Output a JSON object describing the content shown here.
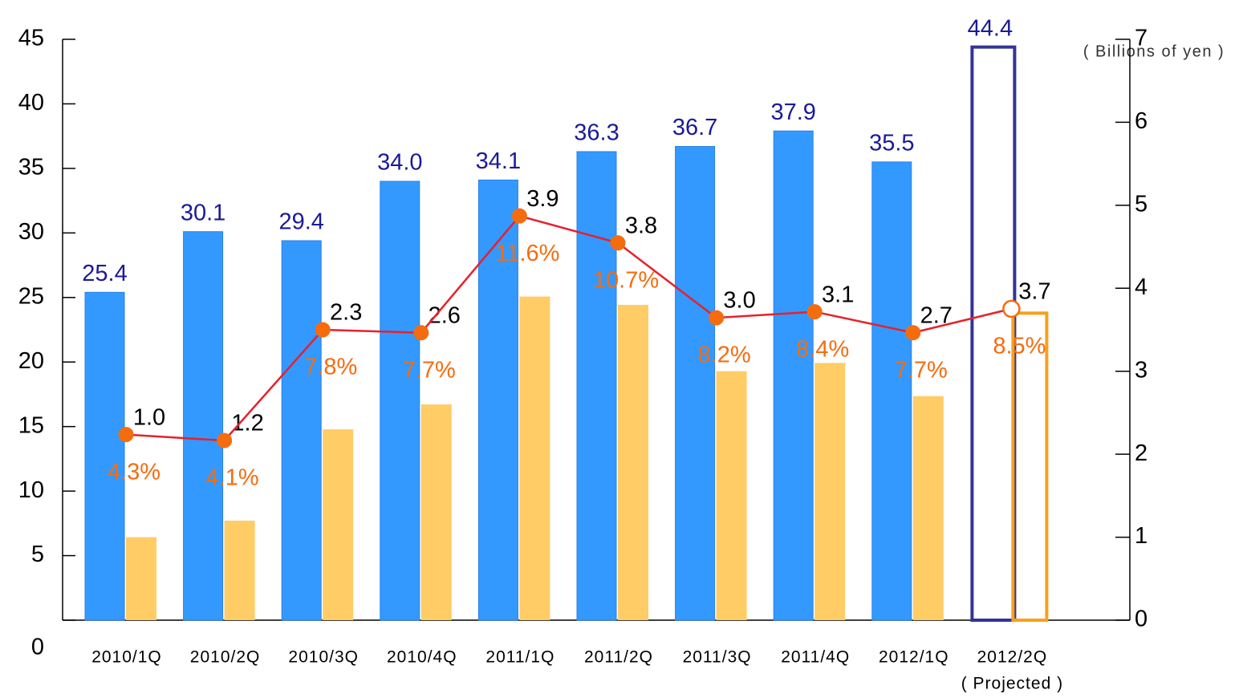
{
  "chart_data": {
    "type": "bar",
    "units_label": "( Billions of yen )",
    "projected_label": "( Projected )",
    "categories": [
      "2010/1Q",
      "2010/2Q",
      "2010/3Q",
      "2010/4Q",
      "2011/1Q",
      "2011/2Q",
      "2011/3Q",
      "2011/4Q",
      "2012/1Q",
      "2012/2Q"
    ],
    "projected_index": 9,
    "series": [
      {
        "type": "bar",
        "axis": "y",
        "color": "#3399ff",
        "outline": "#333399",
        "label_color": "#1a1a99",
        "values": [
          25.4,
          30.1,
          29.4,
          34.0,
          34.1,
          36.3,
          36.7,
          37.9,
          35.5,
          44.4
        ],
        "value_labels": [
          "25.4",
          "30.1",
          "29.4",
          "34.0",
          "34.1",
          "36.3",
          "36.7",
          "37.9",
          "35.5",
          "44.4"
        ]
      },
      {
        "type": "bar",
        "axis": "y2",
        "color": "#ffcc66",
        "outline": "#f7a01c",
        "label_color": "#000000",
        "values": [
          1.0,
          1.2,
          2.3,
          2.6,
          3.9,
          3.8,
          3.0,
          3.1,
          2.7,
          3.7
        ],
        "value_labels": [
          "1.0",
          "1.2",
          "2.3",
          "2.6",
          "3.9",
          "3.8",
          "3.0",
          "3.1",
          "2.7",
          "3.7"
        ]
      },
      {
        "type": "line",
        "axis": "y3",
        "color": "#e8202a",
        "marker_color": "#f56c0f",
        "label_color": "#f56c0f",
        "values": [
          4.3,
          4.1,
          7.8,
          7.7,
          11.6,
          10.7,
          8.2,
          8.4,
          7.7,
          8.5
        ],
        "value_labels": [
          "4.3%",
          "4.1%",
          "7.8%",
          "7.7%",
          "11.6%",
          "10.7%",
          "8.2%",
          "8.4%",
          "7.7%",
          "8.5%"
        ]
      }
    ],
    "ylim": [
      0,
      45
    ],
    "yticks": [
      0,
      5,
      10,
      15,
      20,
      25,
      30,
      35,
      40,
      45
    ],
    "y2lim": [
      0,
      7
    ],
    "y2ticks": [
      0,
      1,
      2,
      3,
      4,
      5,
      6,
      7
    ],
    "y3lim": [
      -1.9,
      17.5
    ]
  }
}
